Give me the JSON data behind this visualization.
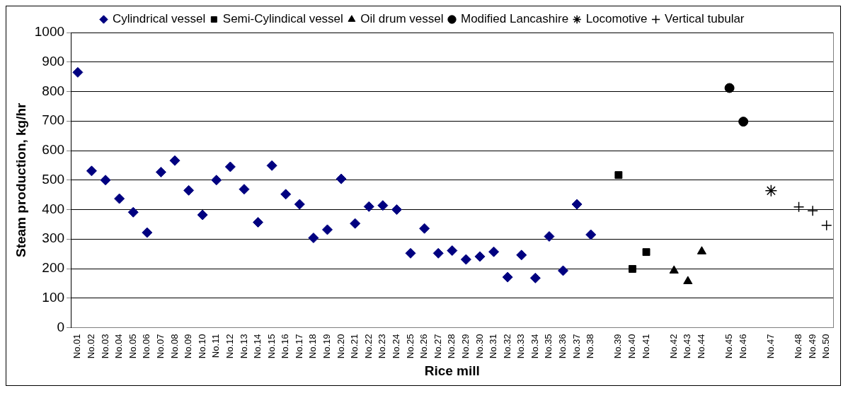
{
  "chart_data": {
    "type": "scatter",
    "xlabel": "Rice mill",
    "ylabel": "Steam production, kg/hr",
    "categories": [
      "No.01",
      "No.02",
      "No.03",
      "No.04",
      "No.05",
      "No.06",
      "No.07",
      "No.08",
      "No.09",
      "No.10",
      "No.11",
      "No.12",
      "No.13",
      "No.14",
      "No.15",
      "No.16",
      "No.17",
      "No.18",
      "No.19",
      "No.20",
      "No.21",
      "No.22",
      "No.23",
      "No.24",
      "No.25",
      "No.26",
      "No.27",
      "No.28",
      "No.29",
      "No.30",
      "No.31",
      "No.32",
      "No.33",
      "No.34",
      "No.35",
      "No.36",
      "No.37",
      "No.38",
      null,
      "No.39",
      "No.40",
      "No.41",
      null,
      "No.42",
      "No.43",
      "No.44",
      null,
      "No.45",
      "No.46",
      null,
      "No.47",
      null,
      "No.48",
      "No.49",
      "No.50"
    ],
    "series": [
      {
        "name": "Cylindrical vessel",
        "color": "#000080",
        "marker": "diamond",
        "values": [
          865,
          531,
          500,
          437,
          391,
          322,
          527,
          566,
          465,
          382,
          500,
          545,
          469,
          357,
          549,
          452,
          418,
          304,
          332,
          504,
          353,
          410,
          414,
          400,
          252,
          336,
          252,
          261,
          231,
          241,
          257,
          171,
          246,
          168,
          309,
          193,
          418,
          315,
          null,
          null,
          null,
          null,
          null,
          null,
          null,
          null,
          null,
          null,
          null,
          null,
          null,
          null,
          null,
          null,
          null
        ]
      },
      {
        "name": "Semi-Cylindical vessel",
        "color": "#000000",
        "marker": "square",
        "values": [
          null,
          null,
          null,
          null,
          null,
          null,
          null,
          null,
          null,
          null,
          null,
          null,
          null,
          null,
          null,
          null,
          null,
          null,
          null,
          null,
          null,
          null,
          null,
          null,
          null,
          null,
          null,
          null,
          null,
          null,
          null,
          null,
          null,
          null,
          null,
          null,
          null,
          null,
          null,
          517,
          199,
          256,
          null,
          null,
          null,
          null,
          null,
          null,
          null,
          null,
          null,
          null,
          null,
          null,
          null
        ]
      },
      {
        "name": "Oil drum vessel",
        "color": "#000000",
        "marker": "triangle",
        "values": [
          null,
          null,
          null,
          null,
          null,
          null,
          null,
          null,
          null,
          null,
          null,
          null,
          null,
          null,
          null,
          null,
          null,
          null,
          null,
          null,
          null,
          null,
          null,
          null,
          null,
          null,
          null,
          null,
          null,
          null,
          null,
          null,
          null,
          null,
          null,
          null,
          null,
          null,
          null,
          null,
          null,
          null,
          null,
          193,
          157,
          258,
          null,
          null,
          null,
          null,
          null,
          null,
          null,
          null,
          null
        ]
      },
      {
        "name": "Modified Lancashire",
        "color": "#000000",
        "marker": "circle",
        "values": [
          null,
          null,
          null,
          null,
          null,
          null,
          null,
          null,
          null,
          null,
          null,
          null,
          null,
          null,
          null,
          null,
          null,
          null,
          null,
          null,
          null,
          null,
          null,
          null,
          null,
          null,
          null,
          null,
          null,
          null,
          null,
          null,
          null,
          null,
          null,
          null,
          null,
          null,
          null,
          null,
          null,
          null,
          null,
          null,
          null,
          null,
          null,
          812,
          698,
          null,
          null,
          null,
          null,
          null,
          null
        ]
      },
      {
        "name": "Locomotive",
        "color": "#000000",
        "values": [
          null,
          null,
          null,
          null,
          null,
          null,
          null,
          null,
          null,
          null,
          null,
          null,
          null,
          null,
          null,
          null,
          null,
          null,
          null,
          null,
          null,
          null,
          null,
          null,
          null,
          null,
          null,
          null,
          null,
          null,
          null,
          null,
          null,
          null,
          null,
          null,
          null,
          null,
          null,
          null,
          null,
          null,
          null,
          null,
          null,
          null,
          null,
          null,
          null,
          null,
          464,
          null,
          null,
          null,
          null
        ]
      },
      {
        "name": "Vertical tubular",
        "color": "#000000",
        "marker": "cross",
        "values": [
          null,
          null,
          null,
          null,
          null,
          null,
          null,
          null,
          null,
          null,
          null,
          null,
          null,
          null,
          null,
          null,
          null,
          null,
          null,
          null,
          null,
          null,
          null,
          null,
          null,
          null,
          null,
          null,
          null,
          null,
          null,
          null,
          null,
          null,
          null,
          null,
          null,
          null,
          null,
          null,
          null,
          null,
          null,
          null,
          null,
          null,
          null,
          null,
          null,
          null,
          null,
          null,
          409,
          396,
          347
        ]
      }
    ],
    "ylim": [
      0,
      1000
    ],
    "yticks": [
      0,
      100,
      200,
      300,
      400,
      500,
      600,
      700,
      800,
      900,
      1000
    ],
    "grid": "y",
    "legend": "top"
  }
}
